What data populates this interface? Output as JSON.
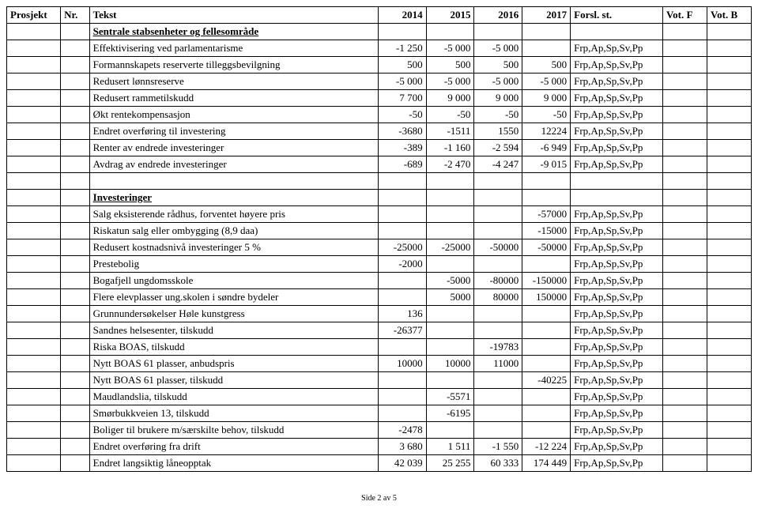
{
  "colors": {
    "border": "#000000",
    "bg": "#ffffff",
    "text": "#000000"
  },
  "font": {
    "family": "Times New Roman",
    "size_pt": 10,
    "header_weight": "bold"
  },
  "header": {
    "prosjekt": "Prosjekt",
    "nr": "Nr.",
    "tekst": "Tekst",
    "y2014": "2014",
    "y2015": "2015",
    "y2016": "2016",
    "y2017": "2017",
    "forsl": "Forsl. st.",
    "votf": "Vot. F",
    "votb": "Vot. B"
  },
  "sections": [
    {
      "title": "Sentrale stabsenheter og fellesområde",
      "rows": [
        {
          "tekst": "Effektivisering ved parlamentarisme",
          "v2014": "-1 250",
          "v2015": "-5 000",
          "v2016": "-5 000",
          "v2017": "",
          "forsl": "Frp,Ap,Sp,Sv,Pp"
        },
        {
          "tekst": "Formannskapets reserverte tilleggsbevilgning",
          "v2014": "500",
          "v2015": "500",
          "v2016": "500",
          "v2017": "500",
          "forsl": "Frp,Ap,Sp,Sv,Pp"
        },
        {
          "tekst": "Redusert lønnsreserve",
          "v2014": "-5 000",
          "v2015": "-5 000",
          "v2016": "-5 000",
          "v2017": "-5 000",
          "forsl": "Frp,Ap,Sp,Sv,Pp"
        },
        {
          "tekst": "Redusert rammetilskudd",
          "v2014": "7 700",
          "v2015": "9 000",
          "v2016": "9 000",
          "v2017": "9 000",
          "forsl": "Frp,Ap,Sp,Sv,Pp"
        },
        {
          "tekst": "Økt rentekompensasjon",
          "v2014": "-50",
          "v2015": "-50",
          "v2016": "-50",
          "v2017": "-50",
          "forsl": "Frp,Ap,Sp,Sv,Pp"
        },
        {
          "tekst": "Endret overføring til investering",
          "v2014": "-3680",
          "v2015": "-1511",
          "v2016": "1550",
          "v2017": "12224",
          "forsl": "Frp,Ap,Sp,Sv,Pp"
        },
        {
          "tekst": "Renter av endrede investeringer",
          "v2014": "-389",
          "v2015": "-1 160",
          "v2016": "-2 594",
          "v2017": "-6 949",
          "forsl": "Frp,Ap,Sp,Sv,Pp"
        },
        {
          "tekst": "Avdrag av endrede investeringer",
          "v2014": "-689",
          "v2015": "-2 470",
          "v2016": "-4 247",
          "v2017": "-9 015",
          "forsl": "Frp,Ap,Sp,Sv,Pp"
        }
      ]
    },
    {
      "title": "Investeringer",
      "rows": [
        {
          "tekst": "Salg eksisterende rådhus, forventet høyere pris",
          "v2014": "",
          "v2015": "",
          "v2016": "",
          "v2017": "-57000",
          "forsl": "Frp,Ap,Sp,Sv,Pp"
        },
        {
          "tekst": "Riskatun salg eller ombygging (8,9 daa)",
          "v2014": "",
          "v2015": "",
          "v2016": "",
          "v2017": "-15000",
          "forsl": "Frp,Ap,Sp,Sv,Pp"
        },
        {
          "tekst": "Redusert kostnadsnivå investeringer 5 %",
          "v2014": "-25000",
          "v2015": "-25000",
          "v2016": "-50000",
          "v2017": "-50000",
          "forsl": "Frp,Ap,Sp,Sv,Pp"
        },
        {
          "tekst": "Prestebolig",
          "v2014": "-2000",
          "v2015": "",
          "v2016": "",
          "v2017": "",
          "forsl": "Frp,Ap,Sp,Sv,Pp"
        },
        {
          "tekst": "Bogafjell ungdomsskole",
          "v2014": "",
          "v2015": "-5000",
          "v2016": "-80000",
          "v2017": "-150000",
          "forsl": "Frp,Ap,Sp,Sv,Pp"
        },
        {
          "tekst": "Flere elevplasser ung.skolen i søndre bydeler",
          "v2014": "",
          "v2015": "5000",
          "v2016": "80000",
          "v2017": "150000",
          "forsl": "Frp,Ap,Sp,Sv,Pp"
        },
        {
          "tekst": "Grunnundersøkelser Høle kunstgress",
          "v2014": "136",
          "v2015": "",
          "v2016": "",
          "v2017": "",
          "forsl": "Frp,Ap,Sp,Sv,Pp"
        },
        {
          "tekst": "Sandnes helsesenter, tilskudd",
          "v2014": "-26377",
          "v2015": "",
          "v2016": "",
          "v2017": "",
          "forsl": "Frp,Ap,Sp,Sv,Pp"
        },
        {
          "tekst": "Riska BOAS, tilskudd",
          "v2014": "",
          "v2015": "",
          "v2016": "-19783",
          "v2017": "",
          "forsl": "Frp,Ap,Sp,Sv,Pp"
        },
        {
          "tekst": "Nytt BOAS 61 plasser, anbudspris",
          "v2014": "10000",
          "v2015": "10000",
          "v2016": "11000",
          "v2017": "",
          "forsl": "Frp,Ap,Sp,Sv,Pp"
        },
        {
          "tekst": "Nytt BOAS 61 plasser, tilskudd",
          "v2014": "",
          "v2015": "",
          "v2016": "",
          "v2017": "-40225",
          "forsl": "Frp,Ap,Sp,Sv,Pp"
        },
        {
          "tekst": "Maudlandslia, tilskudd",
          "v2014": "",
          "v2015": "-5571",
          "v2016": "",
          "v2017": "",
          "forsl": "Frp,Ap,Sp,Sv,Pp"
        },
        {
          "tekst": "Smørbukkveien 13, tilskudd",
          "v2014": "",
          "v2015": "-6195",
          "v2016": "",
          "v2017": "",
          "forsl": "Frp,Ap,Sp,Sv,Pp"
        },
        {
          "tekst": "Boliger til brukere m/særskilte behov, tilskudd",
          "v2014": "-2478",
          "v2015": "",
          "v2016": "",
          "v2017": "",
          "forsl": "Frp,Ap,Sp,Sv,Pp"
        },
        {
          "tekst": "Endret overføring fra drift",
          "v2014": "3 680",
          "v2015": "1 511",
          "v2016": "-1 550",
          "v2017": "-12 224",
          "forsl": "Frp,Ap,Sp,Sv,Pp"
        },
        {
          "tekst": "Endret langsiktig låneopptak",
          "v2014": "42 039",
          "v2015": "25 255",
          "v2016": "60 333",
          "v2017": "174 449",
          "forsl": "Frp,Ap,Sp,Sv,Pp"
        }
      ]
    }
  ],
  "footer": "Side 2 av 5"
}
